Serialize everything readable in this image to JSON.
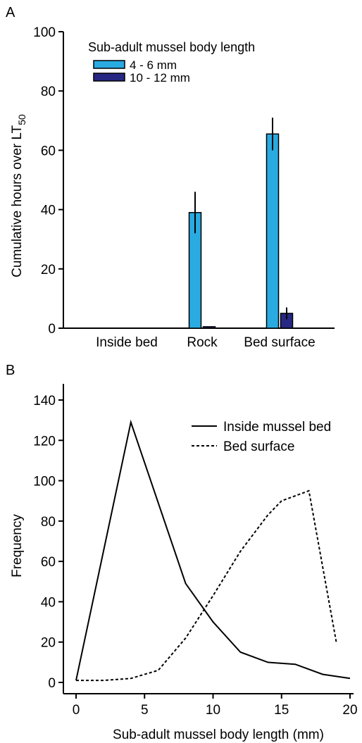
{
  "chart_data": [
    {
      "panel_label": "A",
      "type": "bar",
      "ylabel": "Cumulative hours over LT",
      "ylabel_subscript": "50",
      "ylim": [
        0,
        100
      ],
      "yticks": [
        0,
        20,
        40,
        60,
        80,
        100
      ],
      "categories": [
        "Inside bed",
        "Rock",
        "Bed surface"
      ],
      "legend_title": "Sub-adult mussel body length",
      "legend_position": "top-left",
      "series": [
        {
          "name": "4 - 6 mm",
          "color": "#29abe2",
          "values": [
            0,
            39,
            65.5
          ],
          "errors": [
            0,
            7,
            5.5
          ]
        },
        {
          "name": "10 - 12 mm",
          "color": "#262883",
          "values": [
            0,
            0.5,
            5
          ],
          "errors": [
            0,
            0,
            2
          ]
        }
      ]
    },
    {
      "panel_label": "B",
      "type": "line",
      "xlabel": "Sub-adult mussel body length (mm)",
      "ylabel": "Frequency",
      "xlim": [
        0,
        20
      ],
      "ylim": [
        0,
        140
      ],
      "xticks": [
        0,
        5,
        10,
        15,
        20
      ],
      "yticks": [
        0,
        20,
        40,
        60,
        80,
        100,
        120,
        140
      ],
      "legend_position": "top-right",
      "series": [
        {
          "name": "Inside mussel bed",
          "style": "solid",
          "x": [
            0,
            4,
            8,
            10,
            12,
            14,
            16,
            18,
            20
          ],
          "y": [
            1,
            129,
            49,
            30,
            15,
            10,
            9,
            4,
            2
          ]
        },
        {
          "name": "Bed surface",
          "style": "dashed",
          "x": [
            0,
            2,
            4,
            6,
            8,
            10,
            12,
            14,
            15,
            17,
            19
          ],
          "y": [
            1,
            1,
            2,
            6,
            22,
            43,
            65,
            83,
            90,
            95,
            20
          ]
        }
      ]
    }
  ]
}
